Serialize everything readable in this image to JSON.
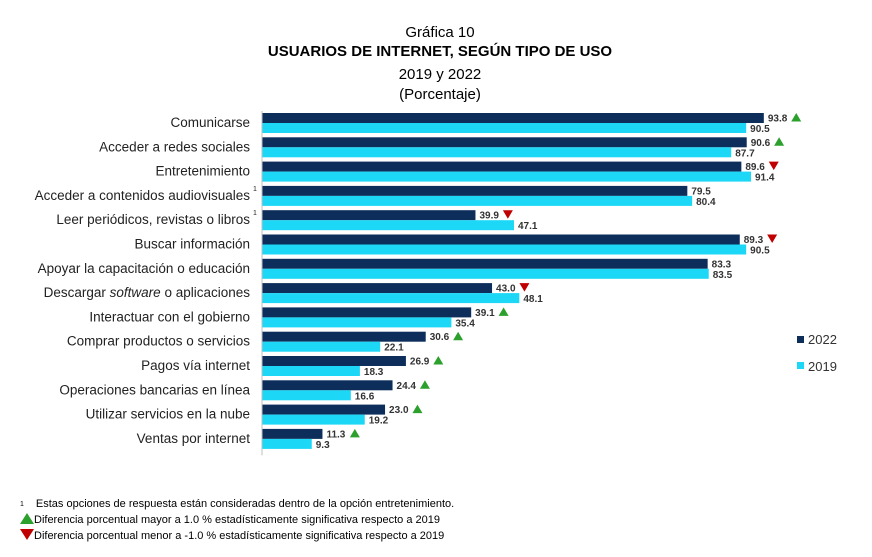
{
  "header": {
    "line1": "Gráfica 10",
    "line2": "USUARIOS DE INTERNET, SEGÚN TIPO DE USO",
    "line3": "2019 y 2022",
    "line4": "(Porcentaje)"
  },
  "colors": {
    "s2022": "#0d2d5a",
    "s2019": "#1cd7f5",
    "up": "#2ca02c",
    "down": "#c00000"
  },
  "chart_data": {
    "type": "bar",
    "orientation": "horizontal",
    "title": "USUARIOS DE INTERNET, SEGÚN TIPO DE USO",
    "categories": [
      "Comunicarse",
      "Acceder a redes sociales",
      "Entretenimiento",
      "Acceder a contenidos audiovisuales",
      "Leer periódicos, revistas o libros",
      "Buscar información",
      "Apoyar la capacitación o educación",
      "Descargar software o aplicaciones",
      "Interactuar con el gobierno",
      "Comprar productos o servicios",
      "Pagos vía internet",
      "Operaciones bancarias en línea",
      "Utilizar servicios en la nube",
      "Ventas por internet"
    ],
    "category_superscripts": [
      "",
      "",
      "",
      "1",
      "1",
      "",
      "",
      "",
      "",
      "",
      "",
      "",
      "",
      ""
    ],
    "series": [
      {
        "name": "2022",
        "values": [
          93.8,
          90.6,
          89.6,
          79.5,
          39.9,
          89.3,
          83.3,
          43.0,
          39.1,
          30.6,
          26.9,
          24.4,
          23.0,
          11.3
        ],
        "labels": [
          "93.8",
          "90.6",
          "89.6",
          "79.5",
          "39.9",
          "89.3",
          "83.3",
          "43.0",
          "39.1",
          "30.6",
          "26.9",
          "24.4",
          "23.0",
          "11.3"
        ],
        "markers": [
          "up",
          "up",
          "down",
          "",
          "down",
          "down",
          "",
          "down",
          "up",
          "up",
          "up",
          "up",
          "up",
          "up"
        ]
      },
      {
        "name": "2019",
        "values": [
          90.5,
          87.7,
          91.4,
          80.4,
          47.1,
          90.5,
          83.5,
          48.1,
          35.4,
          22.1,
          18.3,
          16.6,
          19.2,
          9.3
        ],
        "labels": [
          "90.5",
          "87.7",
          "91.4",
          "80.4",
          "47.1",
          "90.5",
          "83.5",
          "48.1",
          "35.4",
          "22.1",
          "18.3",
          "16.6",
          "19.2",
          "9.3"
        ]
      }
    ],
    "legend_position": "right",
    "grid": false
  },
  "footnotes": {
    "superscript": "1",
    "note1": "Estas opciones de respuesta están consideradas dentro de la opción entretenimiento.",
    "note_up": "Diferencia porcentual mayor a 1.0 % estadísticamente significativa respecto a 2019",
    "note_down": "Diferencia porcentual menor a -1.0 % estadísticamente significativa respecto a 2019"
  }
}
